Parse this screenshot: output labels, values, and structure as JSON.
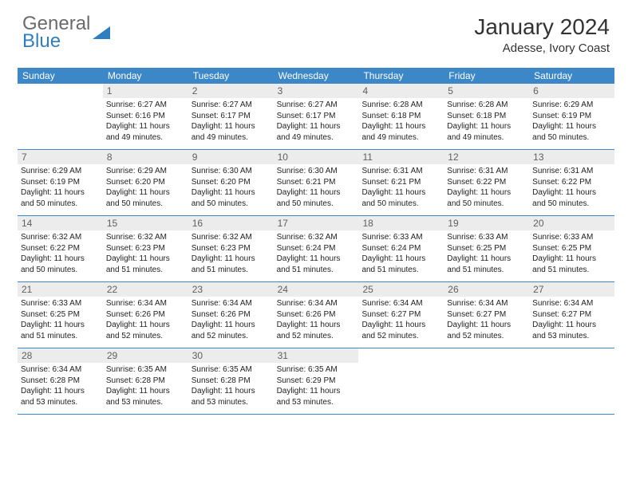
{
  "logo": {
    "line1": "General",
    "line2": "Blue",
    "tri_color": "#2f7fc0",
    "text_gray": "#6b6b6b"
  },
  "title": "January 2024",
  "location": "Adesse, Ivory Coast",
  "header_bg": "#3b87c8",
  "daynum_bg": "#ececec",
  "day_headers": [
    "Sunday",
    "Monday",
    "Tuesday",
    "Wednesday",
    "Thursday",
    "Friday",
    "Saturday"
  ],
  "weeks": [
    [
      {
        "n": "",
        "sr": "",
        "ss": "",
        "dl": ""
      },
      {
        "n": "1",
        "sr": "Sunrise: 6:27 AM",
        "ss": "Sunset: 6:16 PM",
        "dl": "Daylight: 11 hours and 49 minutes."
      },
      {
        "n": "2",
        "sr": "Sunrise: 6:27 AM",
        "ss": "Sunset: 6:17 PM",
        "dl": "Daylight: 11 hours and 49 minutes."
      },
      {
        "n": "3",
        "sr": "Sunrise: 6:27 AM",
        "ss": "Sunset: 6:17 PM",
        "dl": "Daylight: 11 hours and 49 minutes."
      },
      {
        "n": "4",
        "sr": "Sunrise: 6:28 AM",
        "ss": "Sunset: 6:18 PM",
        "dl": "Daylight: 11 hours and 49 minutes."
      },
      {
        "n": "5",
        "sr": "Sunrise: 6:28 AM",
        "ss": "Sunset: 6:18 PM",
        "dl": "Daylight: 11 hours and 49 minutes."
      },
      {
        "n": "6",
        "sr": "Sunrise: 6:29 AM",
        "ss": "Sunset: 6:19 PM",
        "dl": "Daylight: 11 hours and 50 minutes."
      }
    ],
    [
      {
        "n": "7",
        "sr": "Sunrise: 6:29 AM",
        "ss": "Sunset: 6:19 PM",
        "dl": "Daylight: 11 hours and 50 minutes."
      },
      {
        "n": "8",
        "sr": "Sunrise: 6:29 AM",
        "ss": "Sunset: 6:20 PM",
        "dl": "Daylight: 11 hours and 50 minutes."
      },
      {
        "n": "9",
        "sr": "Sunrise: 6:30 AM",
        "ss": "Sunset: 6:20 PM",
        "dl": "Daylight: 11 hours and 50 minutes."
      },
      {
        "n": "10",
        "sr": "Sunrise: 6:30 AM",
        "ss": "Sunset: 6:21 PM",
        "dl": "Daylight: 11 hours and 50 minutes."
      },
      {
        "n": "11",
        "sr": "Sunrise: 6:31 AM",
        "ss": "Sunset: 6:21 PM",
        "dl": "Daylight: 11 hours and 50 minutes."
      },
      {
        "n": "12",
        "sr": "Sunrise: 6:31 AM",
        "ss": "Sunset: 6:22 PM",
        "dl": "Daylight: 11 hours and 50 minutes."
      },
      {
        "n": "13",
        "sr": "Sunrise: 6:31 AM",
        "ss": "Sunset: 6:22 PM",
        "dl": "Daylight: 11 hours and 50 minutes."
      }
    ],
    [
      {
        "n": "14",
        "sr": "Sunrise: 6:32 AM",
        "ss": "Sunset: 6:22 PM",
        "dl": "Daylight: 11 hours and 50 minutes."
      },
      {
        "n": "15",
        "sr": "Sunrise: 6:32 AM",
        "ss": "Sunset: 6:23 PM",
        "dl": "Daylight: 11 hours and 51 minutes."
      },
      {
        "n": "16",
        "sr": "Sunrise: 6:32 AM",
        "ss": "Sunset: 6:23 PM",
        "dl": "Daylight: 11 hours and 51 minutes."
      },
      {
        "n": "17",
        "sr": "Sunrise: 6:32 AM",
        "ss": "Sunset: 6:24 PM",
        "dl": "Daylight: 11 hours and 51 minutes."
      },
      {
        "n": "18",
        "sr": "Sunrise: 6:33 AM",
        "ss": "Sunset: 6:24 PM",
        "dl": "Daylight: 11 hours and 51 minutes."
      },
      {
        "n": "19",
        "sr": "Sunrise: 6:33 AM",
        "ss": "Sunset: 6:25 PM",
        "dl": "Daylight: 11 hours and 51 minutes."
      },
      {
        "n": "20",
        "sr": "Sunrise: 6:33 AM",
        "ss": "Sunset: 6:25 PM",
        "dl": "Daylight: 11 hours and 51 minutes."
      }
    ],
    [
      {
        "n": "21",
        "sr": "Sunrise: 6:33 AM",
        "ss": "Sunset: 6:25 PM",
        "dl": "Daylight: 11 hours and 51 minutes."
      },
      {
        "n": "22",
        "sr": "Sunrise: 6:34 AM",
        "ss": "Sunset: 6:26 PM",
        "dl": "Daylight: 11 hours and 52 minutes."
      },
      {
        "n": "23",
        "sr": "Sunrise: 6:34 AM",
        "ss": "Sunset: 6:26 PM",
        "dl": "Daylight: 11 hours and 52 minutes."
      },
      {
        "n": "24",
        "sr": "Sunrise: 6:34 AM",
        "ss": "Sunset: 6:26 PM",
        "dl": "Daylight: 11 hours and 52 minutes."
      },
      {
        "n": "25",
        "sr": "Sunrise: 6:34 AM",
        "ss": "Sunset: 6:27 PM",
        "dl": "Daylight: 11 hours and 52 minutes."
      },
      {
        "n": "26",
        "sr": "Sunrise: 6:34 AM",
        "ss": "Sunset: 6:27 PM",
        "dl": "Daylight: 11 hours and 52 minutes."
      },
      {
        "n": "27",
        "sr": "Sunrise: 6:34 AM",
        "ss": "Sunset: 6:27 PM",
        "dl": "Daylight: 11 hours and 53 minutes."
      }
    ],
    [
      {
        "n": "28",
        "sr": "Sunrise: 6:34 AM",
        "ss": "Sunset: 6:28 PM",
        "dl": "Daylight: 11 hours and 53 minutes."
      },
      {
        "n": "29",
        "sr": "Sunrise: 6:35 AM",
        "ss": "Sunset: 6:28 PM",
        "dl": "Daylight: 11 hours and 53 minutes."
      },
      {
        "n": "30",
        "sr": "Sunrise: 6:35 AM",
        "ss": "Sunset: 6:28 PM",
        "dl": "Daylight: 11 hours and 53 minutes."
      },
      {
        "n": "31",
        "sr": "Sunrise: 6:35 AM",
        "ss": "Sunset: 6:29 PM",
        "dl": "Daylight: 11 hours and 53 minutes."
      },
      {
        "n": "",
        "sr": "",
        "ss": "",
        "dl": ""
      },
      {
        "n": "",
        "sr": "",
        "ss": "",
        "dl": ""
      },
      {
        "n": "",
        "sr": "",
        "ss": "",
        "dl": ""
      }
    ]
  ]
}
